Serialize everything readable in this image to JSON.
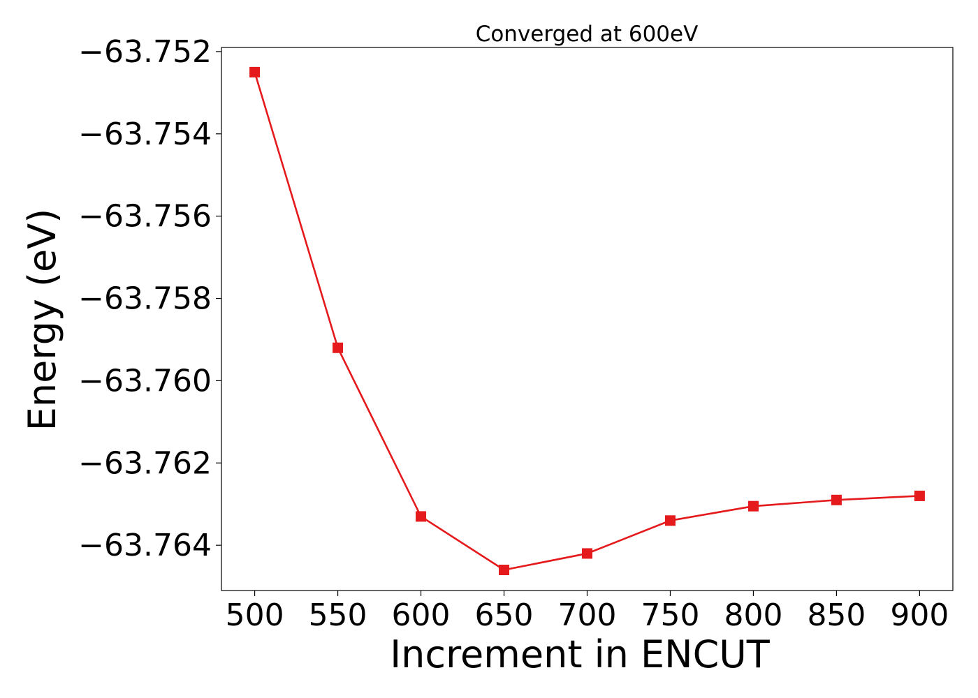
{
  "chart_data": {
    "type": "line",
    "title": "Converged at 600eV",
    "xlabel": "Increment in ENCUT",
    "ylabel": "Energy (eV)",
    "x": [
      500,
      550,
      600,
      650,
      700,
      750,
      800,
      850,
      900
    ],
    "series": [
      {
        "values": [
          -63.7525,
          -63.7592,
          -63.7633,
          -63.7646,
          -63.7642,
          -63.7634,
          -63.76305,
          -63.7629,
          -63.7628
        ],
        "color": "#e41a1c",
        "marker": "square"
      }
    ],
    "xticks": [
      500,
      550,
      600,
      650,
      700,
      750,
      800,
      850,
      900
    ],
    "xtick_labels": [
      "500",
      "550",
      "600",
      "650",
      "700",
      "750",
      "800",
      "850",
      "900"
    ],
    "yticks": [
      -63.752,
      -63.754,
      -63.756,
      -63.758,
      -63.76,
      -63.762,
      -63.764
    ],
    "ytick_labels": [
      "−63.752",
      "−63.754",
      "−63.756",
      "−63.758",
      "−63.760",
      "−63.762",
      "−63.764"
    ],
    "xlim": [
      480,
      920
    ],
    "ylim": [
      -63.7651,
      -63.7519
    ],
    "grid": false,
    "legend": false
  }
}
